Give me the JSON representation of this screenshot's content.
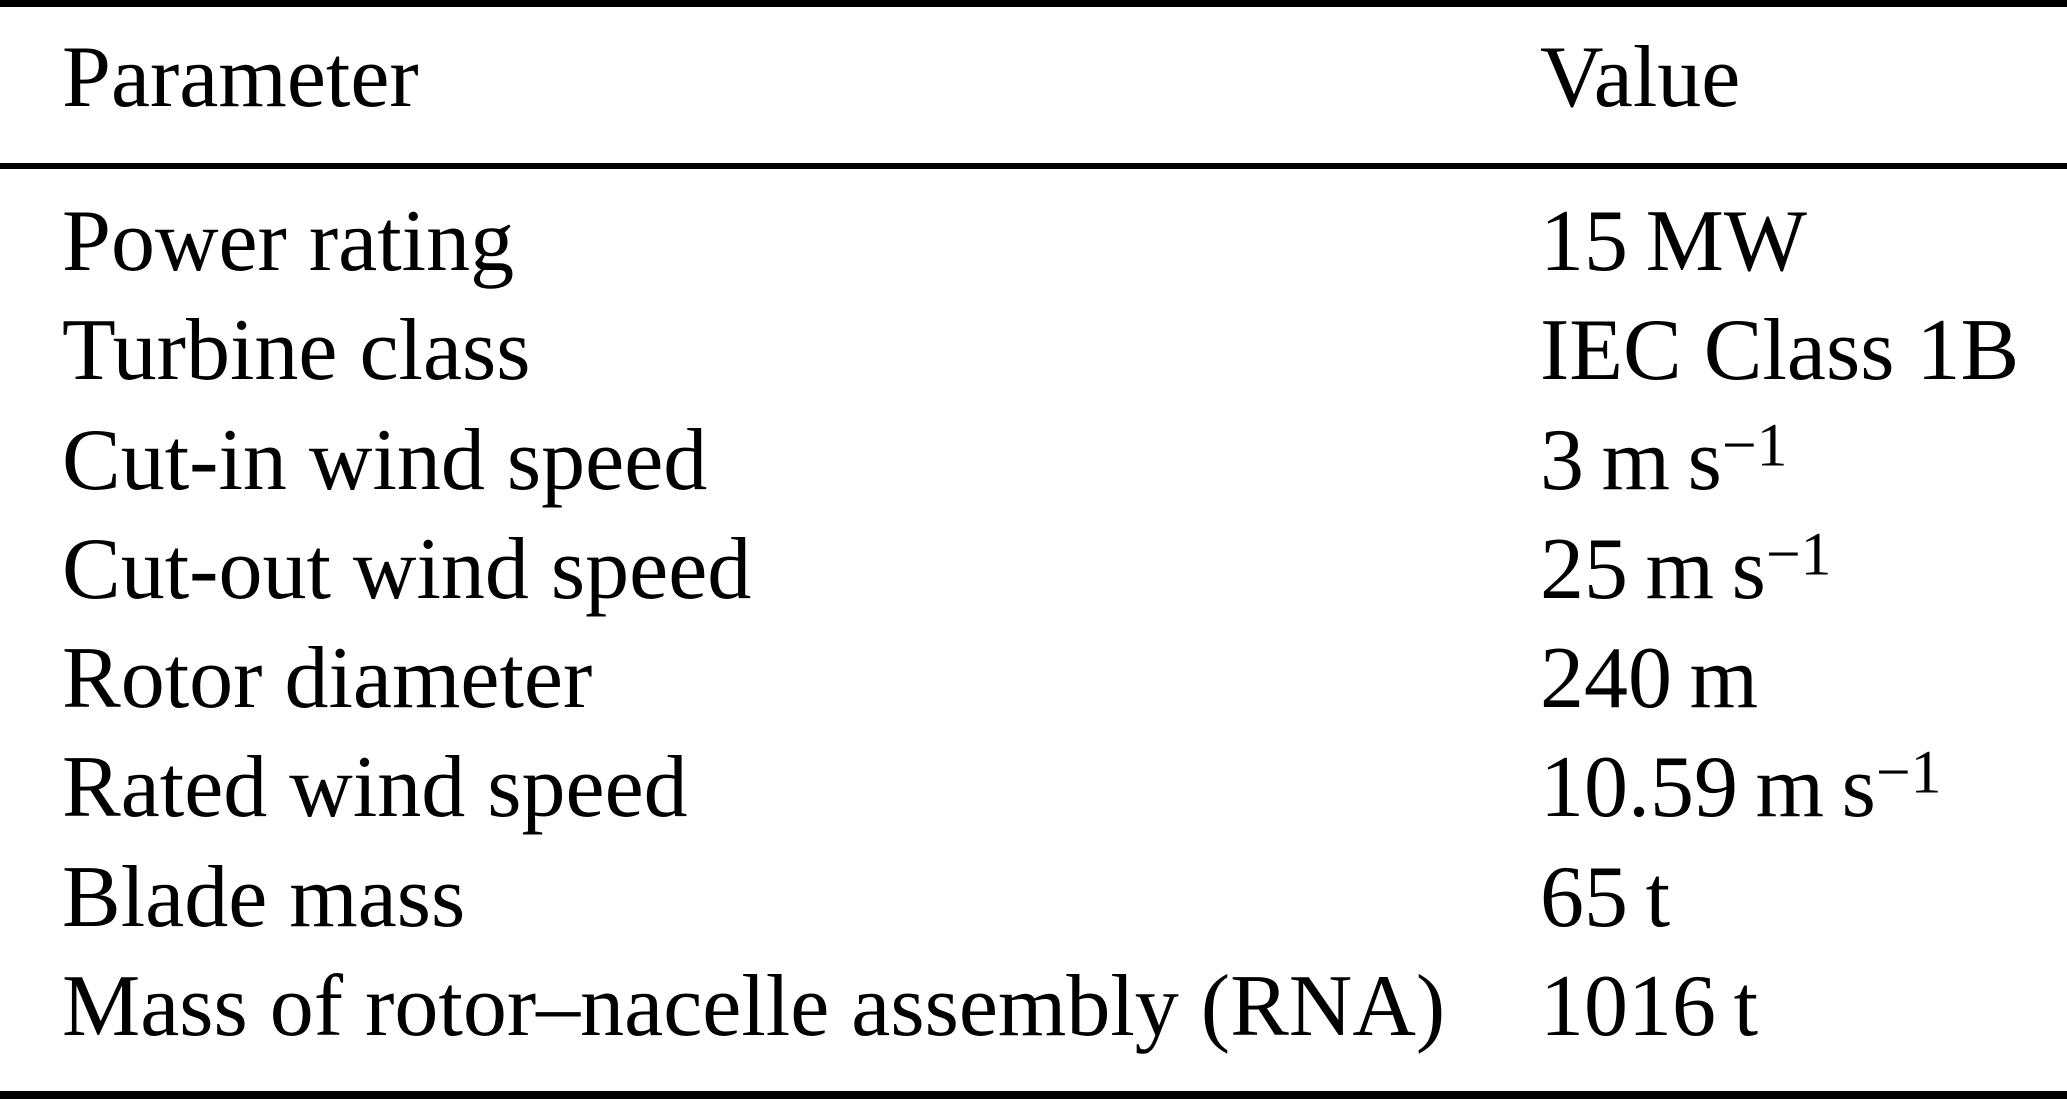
{
  "table": {
    "headers": [
      "Parameter",
      "Value"
    ],
    "rows": [
      {
        "parameter": "Power rating",
        "value": "15 MW",
        "value_sup": ""
      },
      {
        "parameter": "Turbine class",
        "value": "IEC Class 1B",
        "value_sup": ""
      },
      {
        "parameter": "Cut-in wind speed",
        "value": "3 m s",
        "value_sup": "−1"
      },
      {
        "parameter": "Cut-out wind speed",
        "value": "25 m s",
        "value_sup": "−1"
      },
      {
        "parameter": "Rotor diameter",
        "value": "240 m",
        "value_sup": ""
      },
      {
        "parameter": "Rated wind speed",
        "value": "10.59 m s",
        "value_sup": "−1"
      },
      {
        "parameter": "Blade mass",
        "value": "65 t",
        "value_sup": ""
      },
      {
        "parameter": "Mass of rotor–nacelle assembly (RNA)",
        "value": "1016 t",
        "value_sup": ""
      }
    ]
  },
  "colors": {
    "text": "#000000",
    "background": "#ffffff",
    "rule": "#000000"
  }
}
